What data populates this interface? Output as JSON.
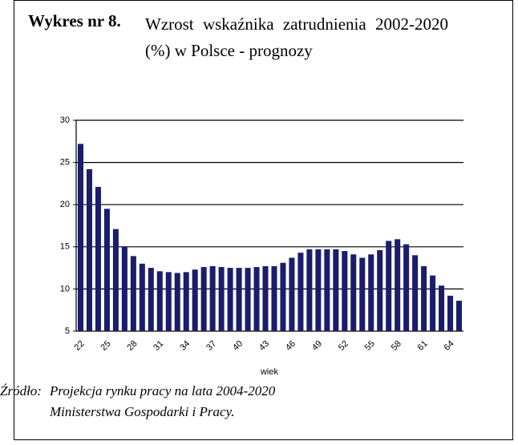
{
  "chart_data": {
    "type": "bar",
    "title_label": "Wykres nr 8.",
    "title": "Wzrost wskaźnika zatrudnienia 2002-2020 (%) w Polsce - prognozy",
    "x_label": "wiek",
    "categories": [
      "22",
      null,
      null,
      "25",
      null,
      null,
      "28",
      null,
      null,
      "31",
      null,
      null,
      "34",
      null,
      null,
      "37",
      null,
      null,
      "40",
      null,
      null,
      "43",
      null,
      null,
      "46",
      null,
      null,
      "49",
      null,
      null,
      "52",
      null,
      null,
      "55",
      null,
      null,
      "58",
      null,
      null,
      "61",
      null,
      null,
      "64",
      null
    ],
    "values": [
      27.2,
      24.2,
      22.1,
      19.5,
      17.1,
      15.0,
      13.9,
      13.0,
      12.5,
      12.1,
      12.0,
      11.9,
      12.0,
      12.3,
      12.6,
      12.7,
      12.6,
      12.5,
      12.5,
      12.5,
      12.6,
      12.7,
      12.7,
      13.1,
      13.7,
      14.3,
      14.7,
      14.7,
      14.7,
      14.7,
      14.5,
      14.1,
      13.7,
      14.1,
      14.6,
      15.7,
      15.9,
      15.3,
      14.0,
      12.7,
      11.6,
      10.4,
      9.2,
      8.6
    ],
    "color": "#1c1c6c",
    "ylim": [
      5,
      30
    ],
    "yticks": [
      5,
      10,
      15,
      20,
      25,
      30
    ],
    "grid": true,
    "source_label": "Źródło:",
    "source_lines": [
      "Projekcja rynku pracy na lata 2004-2020",
      "Ministerstwa Gospodarki i Pracy."
    ]
  }
}
